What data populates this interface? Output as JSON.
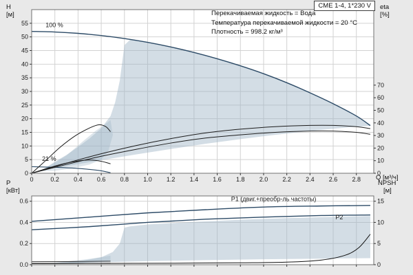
{
  "window": {
    "title": "CME 1-4, 1*230 V"
  },
  "annotations": {
    "line1": "Перекачиваемая жидкость = Вода",
    "line2": "Температура перекачиваемой жидкости = 20 °C",
    "line3": "Плотность = 998.2 кг/м³"
  },
  "axis_labels": {
    "h": "H",
    "h_unit": "[м]",
    "eta": "eta",
    "eta_unit": "[%]",
    "q": "Q [м³/ч]",
    "p": "P",
    "p_unit": "[кВт]",
    "npsh": "NPSH",
    "npsh_unit": "[м]"
  },
  "colors": {
    "background": "#e9e9e9",
    "plot": "#ffffff",
    "grid": "#d2d2d2",
    "frame": "#707070",
    "envelope": "#9db4c6",
    "curve_blue": "#2c4a66",
    "curve_black": "#1c1c1c",
    "label_blue": "#3a6ea5"
  },
  "chart_data": [
    {
      "type": "line",
      "title": "CME 1-4, 1*230 V",
      "x": {
        "min": 0,
        "max": 2.95,
        "tick_values": [
          0,
          0.2,
          0.4,
          0.6,
          0.8,
          1.0,
          1.2,
          1.4,
          1.6,
          1.8,
          2.0,
          2.2,
          2.4,
          2.6,
          2.8
        ],
        "tick_labels": [
          "0",
          "0.2",
          "0.4",
          "0.6",
          "0.8",
          "1.0",
          "1.2",
          "1.4",
          "1.6",
          "1.8",
          "2.0",
          "2.2",
          "2.4",
          "2.6",
          "2.8"
        ],
        "label": "Q [м³/ч]",
        "show_labels": true
      },
      "y_left": {
        "min": 0,
        "max": 60,
        "label": "H [м]",
        "tick_values": [
          0,
          5,
          10,
          15,
          20,
          25,
          30,
          35,
          40,
          45,
          50,
          55
        ],
        "tick_labels": [
          "0",
          "5",
          "10",
          "15",
          "20",
          "25",
          "30",
          "35",
          "40",
          "45",
          "50",
          "55"
        ]
      },
      "y_right": {
        "min": 0,
        "max": 130,
        "label": "eta [%]",
        "tick_values": [
          0,
          10,
          20,
          30,
          40,
          50,
          60,
          70
        ],
        "tick_labels": [
          "0",
          "10",
          "20",
          "30",
          "40",
          "50",
          "60",
          "70"
        ]
      },
      "envelopes": [
        {
          "opacity": 0.45,
          "points": [
            [
              0.08,
              1.0
            ],
            [
              0.3,
              2.6
            ],
            [
              0.6,
              4.8
            ],
            [
              0.9,
              6.9
            ],
            [
              1.2,
              8.9
            ],
            [
              1.5,
              10.8
            ],
            [
              1.8,
              12.5
            ],
            [
              2.1,
              14.1
            ],
            [
              2.4,
              15.5
            ],
            [
              2.7,
              16.7
            ],
            [
              2.92,
              17.4
            ],
            [
              2.92,
              17.8
            ],
            [
              2.8,
              21
            ],
            [
              2.6,
              25.5
            ],
            [
              2.4,
              29.5
            ],
            [
              2.2,
              33.2
            ],
            [
              2.0,
              36.5
            ],
            [
              1.8,
              39.4
            ],
            [
              1.6,
              42
            ],
            [
              1.4,
              44.3
            ],
            [
              1.2,
              46.3
            ],
            [
              1.0,
              48
            ],
            [
              0.85,
              49
            ],
            [
              0.8,
              47
            ],
            [
              0.76,
              34
            ],
            [
              0.72,
              26
            ],
            [
              0.68,
              21
            ],
            [
              0.6,
              16.5
            ],
            [
              0.5,
              12.8
            ],
            [
              0.4,
              9.6
            ],
            [
              0.3,
              6.7
            ],
            [
              0.2,
              4.2
            ],
            [
              0.08,
              1.0
            ]
          ]
        },
        {
          "opacity": 0.35,
          "points": [
            [
              0.08,
              0.8
            ],
            [
              0.3,
              6.5
            ],
            [
              0.45,
              12
            ],
            [
              0.55,
              15.5
            ],
            [
              0.65,
              18.5
            ],
            [
              0.68,
              19.5
            ],
            [
              0.7,
              14
            ],
            [
              0.66,
              8
            ],
            [
              0.6,
              5
            ],
            [
              0.5,
              3.2
            ],
            [
              0.35,
              1.8
            ],
            [
              0.2,
              0.9
            ],
            [
              0.08,
              0.8
            ]
          ]
        }
      ],
      "series": [
        {
          "name": "H at 100% speed",
          "axis": "left",
          "color": "#2c4a66",
          "width": 1.4,
          "points": [
            [
              0,
              52
            ],
            [
              0.2,
              51.8
            ],
            [
              0.4,
              51.3
            ],
            [
              0.6,
              50.5
            ],
            [
              0.8,
              49.4
            ],
            [
              1.0,
              48
            ],
            [
              1.2,
              46.3
            ],
            [
              1.4,
              44.3
            ],
            [
              1.6,
              42
            ],
            [
              1.8,
              39.4
            ],
            [
              2.0,
              36.5
            ],
            [
              2.2,
              33.2
            ],
            [
              2.4,
              29.5
            ],
            [
              2.6,
              25.5
            ],
            [
              2.8,
              21
            ],
            [
              2.92,
              17.5
            ]
          ]
        },
        {
          "name": "H at 21% speed",
          "axis": "left",
          "color": "#2c4a66",
          "width": 1.1,
          "points": [
            [
              0,
              2.4
            ],
            [
              0.2,
              2.2
            ],
            [
              0.35,
              1.9
            ],
            [
              0.5,
              1.4
            ],
            [
              0.6,
              0.9
            ],
            [
              0.68,
              0.2
            ]
          ]
        },
        {
          "name": "eta total",
          "axis": "right",
          "color": "#1c1c1c",
          "width": 1,
          "points": [
            [
              0,
              0
            ],
            [
              0.3,
              8
            ],
            [
              0.6,
              15.5
            ],
            [
              0.9,
              22
            ],
            [
              1.2,
              27.5
            ],
            [
              1.5,
              32
            ],
            [
              1.8,
              35
            ],
            [
              2.1,
              37
            ],
            [
              2.4,
              38
            ],
            [
              2.6,
              38
            ],
            [
              2.8,
              37
            ],
            [
              2.92,
              35.5
            ]
          ]
        },
        {
          "name": "eta pump",
          "axis": "right",
          "color": "#1c1c1c",
          "width": 1,
          "points": [
            [
              0,
              0
            ],
            [
              0.3,
              7
            ],
            [
              0.6,
              13.5
            ],
            [
              0.9,
              19
            ],
            [
              1.2,
              24
            ],
            [
              1.5,
              28
            ],
            [
              1.8,
              30.5
            ],
            [
              2.1,
              32.5
            ],
            [
              2.4,
              33.5
            ],
            [
              2.6,
              33.5
            ],
            [
              2.8,
              32.5
            ],
            [
              2.92,
              31
            ]
          ]
        },
        {
          "name": "eta at 21% speed a",
          "axis": "right",
          "color": "#1c1c1c",
          "width": 1,
          "points": [
            [
              0,
              0
            ],
            [
              0.12,
              10
            ],
            [
              0.25,
              21
            ],
            [
              0.38,
              30
            ],
            [
              0.5,
              36
            ],
            [
              0.58,
              38.5
            ],
            [
              0.64,
              37
            ],
            [
              0.68,
              33
            ]
          ]
        },
        {
          "name": "eta at 21% speed b",
          "axis": "right",
          "color": "#1c1c1c",
          "width": 1,
          "points": [
            [
              0,
              0
            ],
            [
              0.12,
              3.5
            ],
            [
              0.25,
              7
            ],
            [
              0.38,
              9.5
            ],
            [
              0.5,
              10.5
            ],
            [
              0.6,
              9.5
            ],
            [
              0.68,
              7.5
            ]
          ]
        }
      ],
      "text_labels": [
        {
          "text": "100 %",
          "q": 0.12,
          "v": 53.6,
          "axis": "left",
          "color": "#1c1c1c"
        },
        {
          "text": "21 %",
          "q": 0.09,
          "v": 4.6,
          "axis": "left",
          "color": "#1c1c1c"
        }
      ]
    },
    {
      "type": "line",
      "x": {
        "min": 0,
        "max": 2.95,
        "tick_values": [
          0,
          0.2,
          0.4,
          0.6,
          0.8,
          1.0,
          1.2,
          1.4,
          1.6,
          1.8,
          2.0,
          2.2,
          2.4,
          2.6,
          2.8
        ],
        "tick_labels": [],
        "label": "",
        "show_labels": false
      },
      "y_left": {
        "min": 0,
        "max": 0.65,
        "label": "P [кВт]",
        "tick_values": [
          0,
          0.2,
          0.4,
          0.6
        ],
        "tick_labels": [
          "0.0",
          "0.2",
          "0.4",
          "0.6"
        ]
      },
      "y_right": {
        "min": 0,
        "max": 16.25,
        "label": "NPSH [м]",
        "tick_values": [
          0,
          5,
          10,
          15
        ],
        "tick_labels": [
          "0",
          "5",
          "10",
          "15"
        ]
      },
      "envelopes": [
        {
          "opacity": 0.45,
          "points": [
            [
              0.08,
              0.008
            ],
            [
              0.5,
              0.02
            ],
            [
              1.0,
              0.033
            ],
            [
              1.5,
              0.043
            ],
            [
              2.0,
              0.051
            ],
            [
              2.5,
              0.057
            ],
            [
              2.92,
              0.062
            ],
            [
              2.92,
              0.46
            ],
            [
              2.6,
              0.452
            ],
            [
              2.2,
              0.44
            ],
            [
              1.8,
              0.425
            ],
            [
              1.4,
              0.405
            ],
            [
              1.0,
              0.38
            ],
            [
              0.85,
              0.362
            ],
            [
              0.8,
              0.35
            ],
            [
              0.76,
              0.2
            ],
            [
              0.7,
              0.12
            ],
            [
              0.6,
              0.07
            ],
            [
              0.45,
              0.04
            ],
            [
              0.3,
              0.022
            ],
            [
              0.15,
              0.012
            ],
            [
              0.08,
              0.008
            ]
          ]
        },
        {
          "opacity": 0.35,
          "points": [
            [
              0.08,
              0.006
            ],
            [
              0.3,
              0.03
            ],
            [
              0.5,
              0.055
            ],
            [
              0.62,
              0.075
            ],
            [
              0.68,
              0.085
            ],
            [
              0.68,
              0.04
            ],
            [
              0.6,
              0.028
            ],
            [
              0.45,
              0.018
            ],
            [
              0.3,
              0.011
            ],
            [
              0.08,
              0.006
            ]
          ]
        }
      ],
      "series": [
        {
          "name": "P1 motor plus frequency converter",
          "axis": "left",
          "color": "#2c4a66",
          "width": 1.4,
          "points": [
            [
              0,
              0.41
            ],
            [
              0.5,
              0.45
            ],
            [
              1.0,
              0.49
            ],
            [
              1.5,
              0.52
            ],
            [
              2.0,
              0.545
            ],
            [
              2.5,
              0.555
            ],
            [
              2.92,
              0.56
            ]
          ]
        },
        {
          "name": "P2 shaft power",
          "axis": "left",
          "color": "#2c4a66",
          "width": 1.4,
          "points": [
            [
              0,
              0.33
            ],
            [
              0.5,
              0.36
            ],
            [
              1.0,
              0.4
            ],
            [
              1.5,
              0.43
            ],
            [
              2.0,
              0.45
            ],
            [
              2.5,
              0.465
            ],
            [
              2.92,
              0.47
            ]
          ]
        },
        {
          "name": "P1 at 21% speed",
          "axis": "left",
          "color": "#1c1c1c",
          "width": 0.9,
          "points": [
            [
              0,
              0.028
            ],
            [
              0.35,
              0.03
            ],
            [
              0.68,
              0.033
            ]
          ]
        },
        {
          "name": "P2 at 21% speed",
          "axis": "left",
          "color": "#1c1c1c",
          "width": 0.9,
          "points": [
            [
              0,
              0.01
            ],
            [
              0.35,
              0.012
            ],
            [
              0.68,
              0.014
            ]
          ]
        },
        {
          "name": "NPSH",
          "axis": "right",
          "color": "#111111",
          "width": 1,
          "points": [
            [
              0,
              0.3
            ],
            [
              0.6,
              0.3
            ],
            [
              1.2,
              0.35
            ],
            [
              1.8,
              0.45
            ],
            [
              2.2,
              0.6
            ],
            [
              2.5,
              1.1
            ],
            [
              2.7,
              2.2
            ],
            [
              2.82,
              4
            ],
            [
              2.92,
              7.2
            ]
          ]
        }
      ],
      "text_labels": [
        {
          "text": "P1 (двиг.+преобр-ль частоты)",
          "q": 1.72,
          "v": 0.6,
          "axis": "left",
          "color": "#3a6ea5"
        },
        {
          "text": "P2",
          "q": 2.62,
          "v": 0.43,
          "axis": "left",
          "color": "#3a6ea5"
        }
      ]
    }
  ]
}
